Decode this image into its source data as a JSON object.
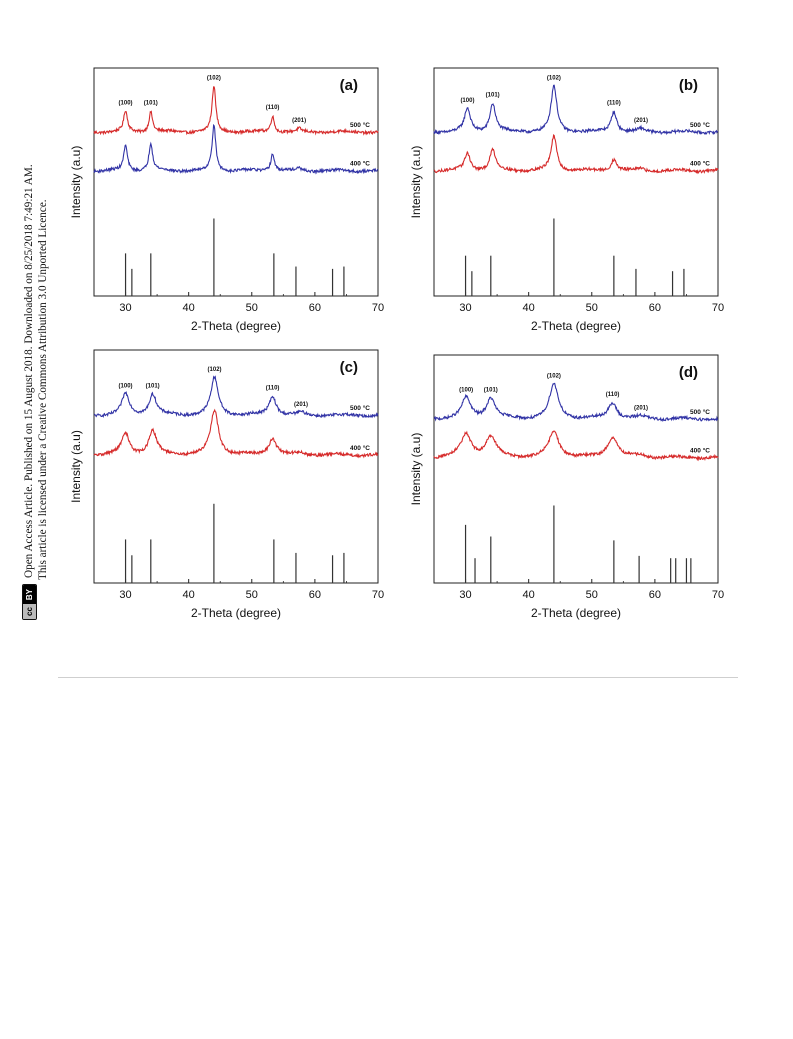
{
  "side_note": {
    "line1": "Open Access Article. Published on 15 August 2018. Downloaded on 8/25/2018 7:49:21 AM.",
    "line2": "This article is licensed under a Creative Commons Attribution 3.0 Unported Licence.",
    "badge_cc": "cc",
    "badge_by": "BY"
  },
  "chart_data": [
    {
      "type": "line",
      "panel_label": "(a)",
      "xlabel": "2-Theta (degree)",
      "ylabel": "Intensity (a.u)",
      "xlim": [
        25,
        70
      ],
      "xticks": [
        30,
        40,
        50,
        60,
        70
      ],
      "series": [
        {
          "name": "500 °C",
          "color": "#d62b2b",
          "position": "top",
          "peak_height": [
            0.45,
            0.45,
            1.0,
            0.35,
            0.06
          ],
          "peak_width": 0.35
        },
        {
          "name": "400 °C",
          "color": "#3234a6",
          "position": "bottom",
          "peak_height": [
            0.55,
            0.6,
            1.0,
            0.38,
            0.05
          ],
          "peak_width": 0.35
        }
      ],
      "peaks": [
        {
          "x": 30.0,
          "label": "(100)"
        },
        {
          "x": 34.0,
          "label": "(101)"
        },
        {
          "x": 44.0,
          "label": "(102)"
        },
        {
          "x": 53.3,
          "label": "(110)"
        },
        {
          "x": 57.5,
          "label": "(201)"
        }
      ],
      "reference_lines": [
        {
          "x": 30.0,
          "h": 0.55
        },
        {
          "x": 31.0,
          "h": 0.35
        },
        {
          "x": 34.0,
          "h": 0.55
        },
        {
          "x": 44.0,
          "h": 1.0
        },
        {
          "x": 53.5,
          "h": 0.55
        },
        {
          "x": 57.0,
          "h": 0.38
        },
        {
          "x": 62.8,
          "h": 0.35
        },
        {
          "x": 64.6,
          "h": 0.38
        }
      ]
    },
    {
      "type": "line",
      "panel_label": "(b)",
      "xlabel": "2-Theta (degree)",
      "ylabel": "Intensity (a.u)",
      "xlim": [
        25,
        70
      ],
      "xticks": [
        30,
        40,
        50,
        60,
        70
      ],
      "series": [
        {
          "name": "500 °C",
          "color": "#3234a6",
          "position": "top",
          "peak_height": [
            0.5,
            0.62,
            1.0,
            0.45,
            0.06
          ],
          "peak_width": 0.55
        },
        {
          "name": "400 °C",
          "color": "#d62b2b",
          "position": "bottom",
          "peak_height": [
            0.38,
            0.45,
            0.75,
            0.25,
            0.04
          ],
          "peak_width": 0.55
        }
      ],
      "peaks": [
        {
          "x": 30.3,
          "label": "(100)"
        },
        {
          "x": 34.3,
          "label": "(101)"
        },
        {
          "x": 44.0,
          "label": "(102)"
        },
        {
          "x": 53.5,
          "label": "(110)"
        },
        {
          "x": 57.8,
          "label": "(201)"
        }
      ],
      "reference_lines": [
        {
          "x": 30.0,
          "h": 0.52
        },
        {
          "x": 31.0,
          "h": 0.32
        },
        {
          "x": 34.0,
          "h": 0.52
        },
        {
          "x": 44.0,
          "h": 1.0
        },
        {
          "x": 53.5,
          "h": 0.52
        },
        {
          "x": 57.0,
          "h": 0.35
        },
        {
          "x": 62.8,
          "h": 0.32
        },
        {
          "x": 64.6,
          "h": 0.35
        }
      ]
    },
    {
      "type": "line",
      "panel_label": "(c)",
      "xlabel": "2-Theta (degree)",
      "ylabel": "Intensity (a.u)",
      "xlim": [
        25,
        70
      ],
      "xticks": [
        30,
        40,
        50,
        60,
        70
      ],
      "series": [
        {
          "name": "500 °C",
          "color": "#3234a6",
          "position": "top",
          "peak_height": [
            0.45,
            0.45,
            0.8,
            0.4,
            0.05
          ],
          "peak_width": 0.7
        },
        {
          "name": "400 °C",
          "color": "#d62b2b",
          "position": "bottom",
          "peak_height": [
            0.45,
            0.5,
            0.95,
            0.35,
            0.04
          ],
          "peak_width": 0.75
        }
      ],
      "peaks": [
        {
          "x": 30.0,
          "label": "(100)"
        },
        {
          "x": 34.3,
          "label": "(101)"
        },
        {
          "x": 44.1,
          "label": "(102)"
        },
        {
          "x": 53.3,
          "label": "(110)"
        },
        {
          "x": 57.8,
          "label": "(201)"
        }
      ],
      "reference_lines": [
        {
          "x": 30.0,
          "h": 0.55
        },
        {
          "x": 31.0,
          "h": 0.35
        },
        {
          "x": 34.0,
          "h": 0.55
        },
        {
          "x": 44.0,
          "h": 1.0
        },
        {
          "x": 53.5,
          "h": 0.55
        },
        {
          "x": 57.0,
          "h": 0.38
        },
        {
          "x": 62.8,
          "h": 0.35
        },
        {
          "x": 64.6,
          "h": 0.38
        }
      ]
    },
    {
      "type": "line",
      "panel_label": "(d)",
      "xlabel": "2-Theta (degree)",
      "ylabel": "Intensity (a.u)",
      "xlim": [
        25,
        70
      ],
      "xticks": [
        30,
        40,
        50,
        60,
        70
      ],
      "series": [
        {
          "name": "500 °C",
          "color": "#3234a6",
          "position": "top",
          "peak_height": [
            0.45,
            0.45,
            0.75,
            0.35,
            0.05
          ],
          "peak_width": 0.85
        },
        {
          "name": "400 °C",
          "color": "#d62b2b",
          "position": "bottom",
          "peak_height": [
            0.5,
            0.45,
            0.55,
            0.45,
            0.04
          ],
          "peak_width": 1.0
        }
      ],
      "peaks": [
        {
          "x": 30.1,
          "label": "(100)"
        },
        {
          "x": 34.0,
          "label": "(101)"
        },
        {
          "x": 44.0,
          "label": "(102)"
        },
        {
          "x": 53.3,
          "label": "(110)"
        },
        {
          "x": 57.8,
          "label": "(201)"
        }
      ],
      "reference_lines": [
        {
          "x": 30.0,
          "h": 0.75
        },
        {
          "x": 31.5,
          "h": 0.32
        },
        {
          "x": 34.0,
          "h": 0.6
        },
        {
          "x": 44.0,
          "h": 1.0
        },
        {
          "x": 53.5,
          "h": 0.55
        },
        {
          "x": 57.5,
          "h": 0.35
        },
        {
          "x": 62.5,
          "h": 0.32
        },
        {
          "x": 63.3,
          "h": 0.32
        },
        {
          "x": 65.0,
          "h": 0.32
        },
        {
          "x": 65.7,
          "h": 0.32
        }
      ]
    }
  ]
}
